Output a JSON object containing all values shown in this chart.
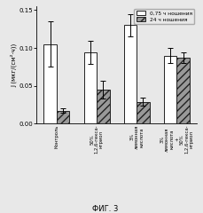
{
  "categories": [
    "Контроль",
    "50%\n1,2,6-гекса-\nнтриол",
    "3%\nлимонная\nкислота",
    "3%\nлимонная\nкислота\n+\n50%\n1,2,6-гекса-\nнтриол"
  ],
  "values_075": [
    0.105,
    0.094,
    0.13,
    0.09
  ],
  "values_24": [
    0.017,
    0.045,
    0.029,
    0.087
  ],
  "errors_075": [
    0.03,
    0.015,
    0.015,
    0.01
  ],
  "errors_24": [
    0.003,
    0.012,
    0.005,
    0.007
  ],
  "color_075": "#ffffff",
  "color_24": "#999999",
  "ylabel": "J (мкг/(см²·ч))",
  "ylim": [
    0.0,
    0.155
  ],
  "yticks": [
    0.0,
    0.05,
    0.1,
    0.15
  ],
  "legend_075": "0,75 ч ношения",
  "legend_24": "24 ч ношения",
  "figlabel": "ФИГ. 3",
  "bar_width": 0.32,
  "edgecolor": "#222222",
  "bg_color": "#e8e8e8"
}
